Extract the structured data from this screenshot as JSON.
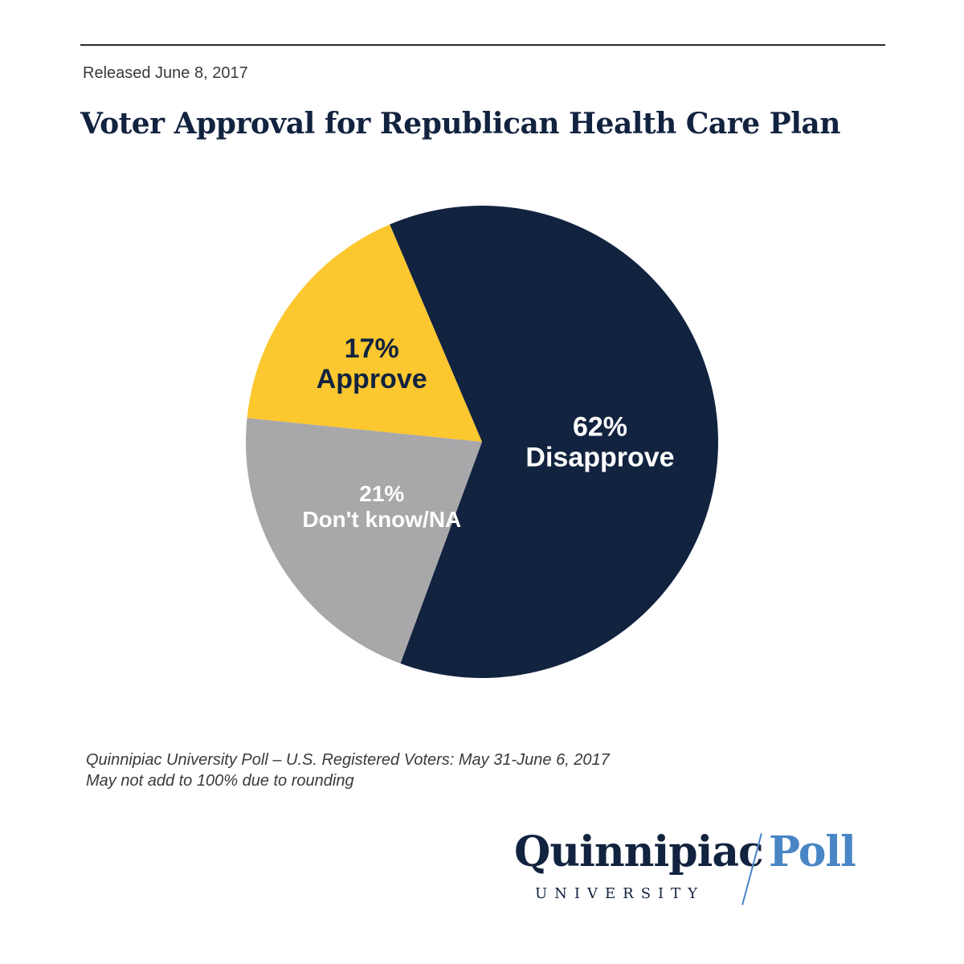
{
  "header": {
    "release": "Released June 8, 2017"
  },
  "chart_data": {
    "type": "pie",
    "title": "Voter Approval for Republican Health Care Plan",
    "slices": [
      {
        "key": "disapprove",
        "label": "Disapprove",
        "value": 62,
        "display": "62%",
        "color": "#12233f",
        "text_color": "#ffffff"
      },
      {
        "key": "dontknow",
        "label": "Don't know/NA",
        "value": 21,
        "display": "21%",
        "color": "#a8a8aa",
        "text_color": "#ffffff"
      },
      {
        "key": "approve",
        "label": "Approve",
        "value": 17,
        "display": "17%",
        "color": "#fcc72f",
        "text_color": "#12233f"
      }
    ]
  },
  "footnotes": {
    "source": "Quinnipiac University Poll – U.S. Registered Voters: May 31-June 6, 2017",
    "note": "May not add to 100% due to rounding"
  },
  "logo": {
    "name": "Quinnipiac",
    "subtitle": "UNIVERSITY",
    "poll": "Poll"
  }
}
